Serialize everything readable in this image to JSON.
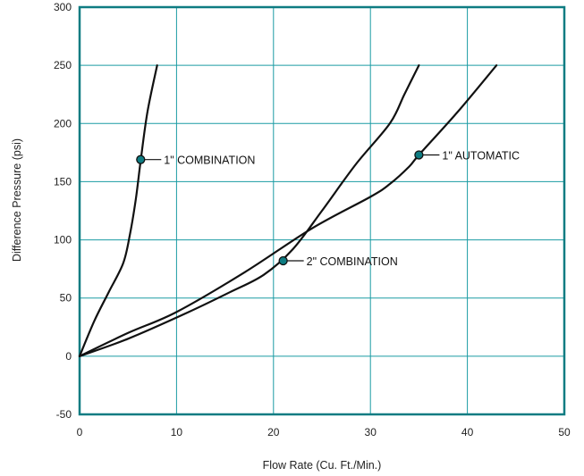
{
  "chart_data": {
    "type": "line",
    "title": "",
    "xlabel": "Flow Rate (Cu. Ft./Min.)",
    "ylabel": "Difference Pressure (psi)",
    "xlim": [
      0,
      50
    ],
    "ylim": [
      -50,
      300
    ],
    "xticks": [
      0,
      10,
      20,
      30,
      40,
      50
    ],
    "yticks": [
      -50,
      0,
      50,
      100,
      150,
      200,
      250,
      300
    ],
    "grid": true,
    "colors": {
      "frame": "#0e7c82",
      "grid": "#1a9ba3",
      "line": "#111111",
      "marker": "#0e7c82"
    },
    "series": [
      {
        "points": [
          [
            0,
            0
          ],
          [
            1.5,
            30
          ],
          [
            3,
            55
          ],
          [
            4.5,
            80
          ],
          [
            5.2,
            105
          ],
          [
            5.8,
            135
          ],
          [
            6.3,
            168
          ],
          [
            7,
            210
          ],
          [
            8,
            250
          ]
        ]
      },
      {
        "points": [
          [
            0,
            0
          ],
          [
            5,
            15
          ],
          [
            11,
            37
          ],
          [
            15.5,
            55
          ],
          [
            19,
            70
          ],
          [
            22,
            92
          ],
          [
            25,
            125
          ],
          [
            28.5,
            165
          ],
          [
            32,
            200
          ],
          [
            33.5,
            225
          ],
          [
            35,
            250
          ]
        ]
      },
      {
        "points": [
          [
            0,
            0
          ],
          [
            5,
            20
          ],
          [
            10,
            38
          ],
          [
            17,
            72
          ],
          [
            24,
            110
          ],
          [
            30,
            137
          ],
          [
            32,
            148
          ],
          [
            34,
            163
          ],
          [
            35,
            173
          ],
          [
            39,
            210
          ],
          [
            43,
            250
          ]
        ]
      }
    ],
    "annotations": [
      {
        "text": "1\" COMBINATION",
        "x": 6.3,
        "y": 169
      },
      {
        "text": "2\" COMBINATION",
        "x": 21,
        "y": 82
      },
      {
        "text": "1\" AUTOMATIC",
        "x": 35,
        "y": 173
      }
    ]
  }
}
